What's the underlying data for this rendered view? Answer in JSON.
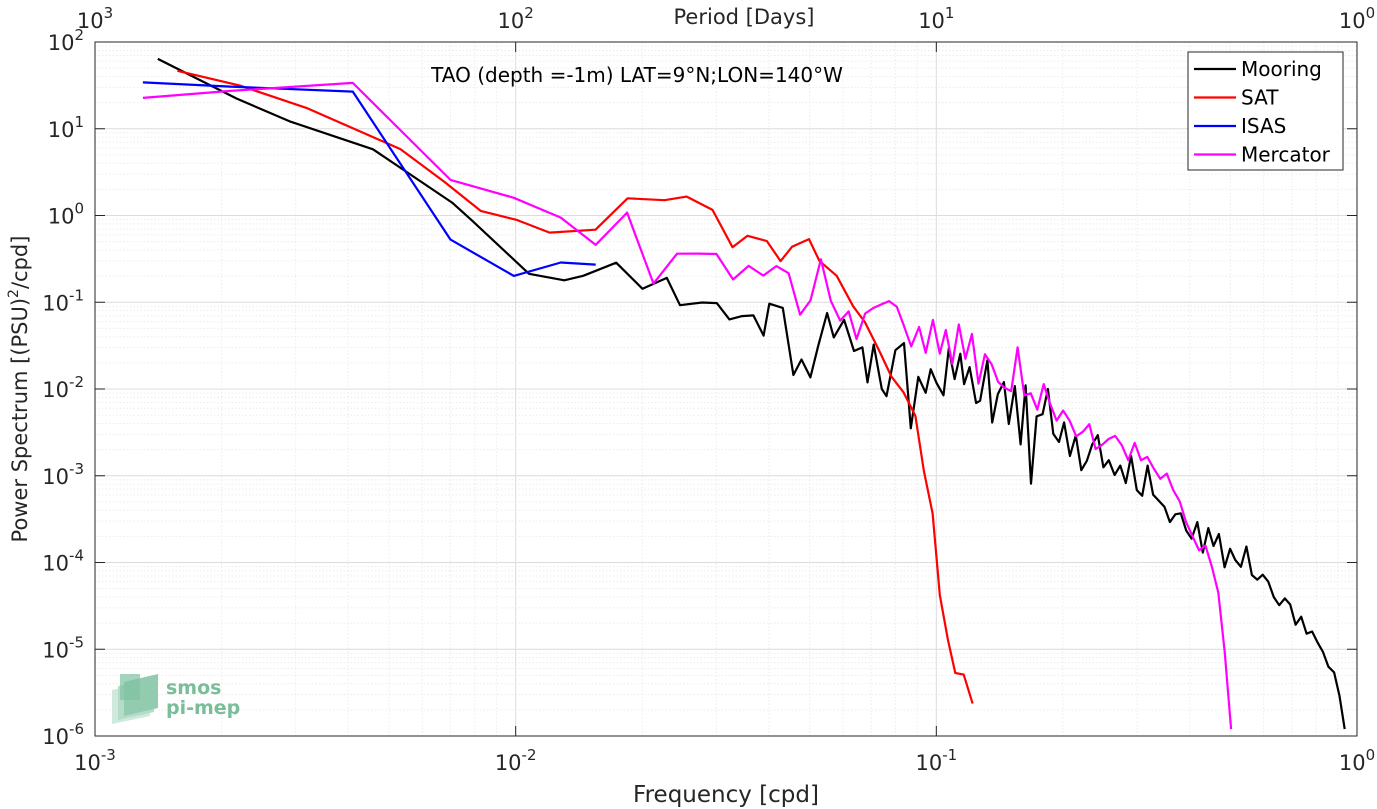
{
  "chart_data": {
    "type": "line",
    "title": "TAO (depth =-1m) LAT=9°N;LON=140°W",
    "xlabel": "Frequency [cpd]",
    "ylabel_main": "Power Spectrum [(PSU)",
    "ylabel_sup": "2",
    "ylabel_tail": "/cpd]",
    "top_xlabel": "Period [Days]",
    "x_scale": "log",
    "y_scale": "log",
    "xlim": [
      0.001,
      1
    ],
    "ylim": [
      1e-06,
      100
    ],
    "grid": true,
    "legend_position": "top-right",
    "x_ticks": [
      {
        "value": 0.001,
        "base": "10",
        "exp": "-3"
      },
      {
        "value": 0.01,
        "base": "10",
        "exp": "-2"
      },
      {
        "value": 0.1,
        "base": "10",
        "exp": "-1"
      },
      {
        "value": 1,
        "base": "10",
        "exp": "0"
      }
    ],
    "top_ticks": [
      {
        "value": 0.001,
        "base": "10",
        "exp": "3"
      },
      {
        "value": 0.01,
        "base": "10",
        "exp": "2"
      },
      {
        "value": 0.1,
        "base": "10",
        "exp": "1"
      },
      {
        "value": 1,
        "base": "10",
        "exp": "0"
      }
    ],
    "y_ticks": [
      {
        "value": 100,
        "base": "10",
        "exp": "2"
      },
      {
        "value": 10,
        "base": "10",
        "exp": "1"
      },
      {
        "value": 1,
        "base": "10",
        "exp": "0"
      },
      {
        "value": 0.1,
        "base": "10",
        "exp": "-1"
      },
      {
        "value": 0.01,
        "base": "10",
        "exp": "-2"
      },
      {
        "value": 0.001,
        "base": "10",
        "exp": "-3"
      },
      {
        "value": 0.0001,
        "base": "10",
        "exp": "-4"
      },
      {
        "value": 1e-05,
        "base": "10",
        "exp": "-5"
      },
      {
        "value": 1e-06,
        "base": "10",
        "exp": "-6"
      }
    ],
    "series": [
      {
        "name": "Mooring",
        "color": "#000000",
        "x": [
          0.00141,
          0.00217,
          0.0029,
          0.00458,
          0.00706,
          0.00787,
          0.01076,
          0.01305,
          0.01447,
          0.01734,
          0.02002,
          0.02287,
          0.02458,
          0.02775,
          0.03007,
          0.03221,
          0.03453,
          0.03674,
          0.03884,
          0.04008,
          0.04316,
          0.04573,
          0.0478,
          0.05019,
          0.05235,
          0.05501,
          0.05705,
          0.06035,
          0.06372,
          0.06672,
          0.06862,
          0.07096,
          0.07418,
          0.07613,
          0.07993,
          0.0838,
          0.08695,
          0.0906,
          0.09436,
          0.09699,
          0.10015,
          0.104,
          0.10708,
          0.11049,
          0.11399,
          0.11642,
          0.11996,
          0.12429,
          0.12706,
          0.13223,
          0.1358,
          0.13996,
          0.14478,
          0.14865,
          0.15365,
          0.15857,
          0.16305,
          0.16786,
          0.17313,
          0.17893,
          0.18419,
          0.18968,
          0.19566,
          0.20128,
          0.20769,
          0.21456,
          0.22116,
          0.22794,
          0.23488,
          0.24196,
          0.24949,
          0.25703,
          0.26532,
          0.27374,
          0.28211,
          0.29039,
          0.29955,
          0.30867,
          0.31791,
          0.32753,
          0.33802,
          0.34858,
          0.35917,
          0.37008,
          0.38127,
          0.39269,
          0.40432,
          0.41731,
          0.43007,
          0.44317,
          0.45603,
          0.4696,
          0.48443,
          0.49938,
          0.5137,
          0.52968,
          0.54601,
          0.5625,
          0.5795,
          0.5969,
          0.61542,
          0.63431,
          0.6531,
          0.67366,
          0.69383,
          0.71474,
          0.73668,
          0.75883,
          0.78201,
          0.80624,
          0.83007,
          0.85518,
          0.88214,
          0.90868,
          0.93485
        ],
        "y": [
          63.9,
          22.3,
          12.2,
          5.79,
          1.41,
          0.879,
          0.213,
          0.179,
          0.202,
          0.286,
          0.143,
          0.191,
          0.0924,
          0.0994,
          0.0978,
          0.0634,
          0.0692,
          0.0705,
          0.0413,
          0.0962,
          0.086,
          0.0145,
          0.0219,
          0.0136,
          0.0311,
          0.0751,
          0.0393,
          0.0628,
          0.0274,
          0.0302,
          0.0119,
          0.0325,
          0.01,
          0.00826,
          0.028,
          0.0338,
          0.00352,
          0.0138,
          0.00904,
          0.0169,
          0.0117,
          0.00846,
          0.0294,
          0.013,
          0.0255,
          0.0114,
          0.0179,
          0.00689,
          0.00733,
          0.0215,
          0.00411,
          0.00868,
          0.012,
          0.00395,
          0.0108,
          0.0023,
          0.011,
          0.00081,
          0.00483,
          0.00512,
          0.01,
          0.00304,
          0.00245,
          0.00412,
          0.00169,
          0.00292,
          0.00116,
          0.00149,
          0.00231,
          0.00293,
          0.00125,
          0.00151,
          0.00102,
          0.00131,
          0.000822,
          0.00169,
          0.000683,
          0.000588,
          0.00131,
          0.000606,
          0.000515,
          0.000437,
          0.000292,
          0.000359,
          0.000369,
          0.000234,
          0.000188,
          0.000292,
          0.00013,
          0.000249,
          0.000155,
          0.000213,
          8.81e-05,
          0.000144,
          0.000107,
          8.91e-05,
          0.000153,
          7.18e-05,
          6.34e-05,
          7.23e-05,
          6e-05,
          3.99e-05,
          3.22e-05,
          3.86e-05,
          3.28e-05,
          1.92e-05,
          2.37e-05,
          1.51e-05,
          1.6e-05,
          1.19e-05,
          9.3e-06,
          6.3e-06,
          5.41e-06,
          2.9e-06,
          1.2e-06
        ]
      },
      {
        "name": "SAT",
        "color": "#ff0000",
        "x": [
          0.00157,
          0.00221,
          0.00318,
          0.00532,
          0.00676,
          0.00826,
          0.01009,
          0.01204,
          0.01548,
          0.01845,
          0.02259,
          0.0255,
          0.02937,
          0.03276,
          0.03557,
          0.03953,
          0.04263,
          0.04538,
          0.04982,
          0.05272,
          0.05795,
          0.0634,
          0.06764,
          0.07318,
          0.07818,
          0.08354,
          0.08919,
          0.09339,
          0.09799,
          0.10193,
          0.10651,
          0.11093,
          0.11615,
          0.12196
        ],
        "y": [
          46.6,
          31.4,
          17.4,
          5.82,
          2.46,
          1.13,
          0.885,
          0.635,
          0.686,
          1.58,
          1.5,
          1.65,
          1.16,
          0.431,
          0.583,
          0.508,
          0.298,
          0.436,
          0.535,
          0.3,
          0.202,
          0.0901,
          0.0591,
          0.0275,
          0.0139,
          0.00917,
          0.0049,
          0.00115,
          0.000368,
          4.23e-05,
          1.29e-05,
          5.32e-06,
          5.1e-06,
          2.36e-06
        ]
      },
      {
        "name": "ISAS",
        "color": "#0000ff",
        "x": [
          0.0013,
          0.0021,
          0.0041,
          0.007,
          0.0099,
          0.0128,
          0.0155
        ],
        "y": [
          34.2,
          30.6,
          26.8,
          0.527,
          0.201,
          0.287,
          0.272
        ]
      },
      {
        "name": "Mercator",
        "color": "#ff00ff",
        "x": [
          0.0013,
          0.0021,
          0.0041,
          0.007,
          0.0099,
          0.0128,
          0.0155,
          0.0184,
          0.02127,
          0.02419,
          0.02716,
          0.03002,
          0.03287,
          0.03578,
          0.03878,
          0.04164,
          0.04455,
          0.04743,
          0.05022,
          0.05317,
          0.05612,
          0.0591,
          0.0619,
          0.0646,
          0.06776,
          0.07082,
          0.07417,
          0.07721,
          0.08052,
          0.08368,
          0.08714,
          0.09099,
          0.09437,
          0.09814,
          0.10189,
          0.10532,
          0.10913,
          0.1131,
          0.11722,
          0.12149,
          0.12597,
          0.13043,
          0.13534,
          0.14026,
          0.14539,
          0.15061,
          0.15604,
          0.16181,
          0.16769,
          0.17381,
          0.17996,
          0.18632,
          0.19319,
          0.20018,
          0.20744,
          0.215,
          0.223,
          0.23095,
          0.23909,
          0.2477,
          0.25672,
          0.2662,
          0.27594,
          0.2859,
          0.29619,
          0.30656,
          0.31735,
          0.32882,
          0.34071,
          0.35299,
          0.3657,
          0.37893,
          0.39224,
          0.40652,
          0.42131,
          0.43618,
          0.4517,
          0.46799,
          0.48475,
          0.50207
        ],
        "y": [
          22.7,
          27.3,
          33.8,
          2.57,
          1.6,
          0.945,
          0.458,
          1.08,
          0.164,
          0.363,
          0.364,
          0.36,
          0.183,
          0.263,
          0.203,
          0.261,
          0.216,
          0.0719,
          0.105,
          0.313,
          0.104,
          0.0614,
          0.0785,
          0.0376,
          0.0741,
          0.0858,
          0.095,
          0.103,
          0.0887,
          0.0539,
          0.031,
          0.0519,
          0.0261,
          0.0624,
          0.0256,
          0.0479,
          0.0194,
          0.0554,
          0.0223,
          0.0431,
          0.0115,
          0.0251,
          0.0193,
          0.0121,
          0.0103,
          0.00946,
          0.0302,
          0.00847,
          0.00893,
          0.00577,
          0.0114,
          0.00681,
          0.00432,
          0.00565,
          0.00432,
          0.00285,
          0.00322,
          0.00393,
          0.00203,
          0.00227,
          0.00265,
          0.00288,
          0.00225,
          0.00151,
          0.00239,
          0.00151,
          0.00165,
          0.00121,
          0.000923,
          0.00106,
          0.000683,
          0.000508,
          0.000294,
          0.0002,
          0.000138,
          0.000157,
          9e-05,
          4.5e-05,
          9.31e-06,
          1.2e-06
        ]
      }
    ]
  },
  "logo": {
    "line1": "smos",
    "line2": "pi-mep"
  }
}
